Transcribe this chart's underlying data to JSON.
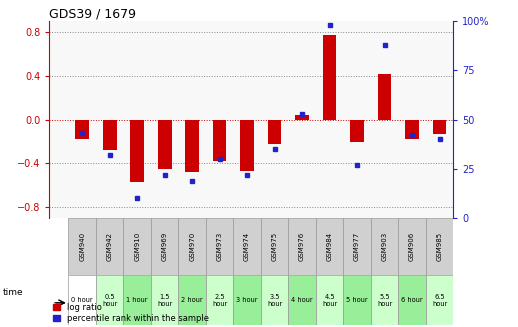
{
  "title": "GDS39 / 1679",
  "samples": [
    "GSM940",
    "GSM942",
    "GSM910",
    "GSM969",
    "GSM970",
    "GSM973",
    "GSM974",
    "GSM975",
    "GSM976",
    "GSM984",
    "GSM977",
    "GSM903",
    "GSM906",
    "GSM985"
  ],
  "time_labels": [
    "0 hour",
    "0.5\nhour",
    "1 hour",
    "1.5\nhour",
    "2 hour",
    "2.5\nhour",
    "3 hour",
    "3.5\nhour",
    "4 hour",
    "4.5\nhour",
    "5 hour",
    "5.5\nhour",
    "6 hour",
    "6.5\nhour"
  ],
  "log_ratio": [
    -0.18,
    -0.28,
    -0.57,
    -0.45,
    -0.48,
    -0.38,
    -0.47,
    -0.22,
    0.04,
    0.77,
    -0.2,
    0.42,
    -0.18,
    -0.13
  ],
  "percentile": [
    43,
    32,
    10,
    22,
    19,
    30,
    22,
    35,
    53,
    98,
    27,
    88,
    42,
    40
  ],
  "time_colors": [
    "#ffffff",
    "#ccffcc",
    "#99ee99",
    "#ccffcc",
    "#99ee99",
    "#ccffcc",
    "#99ee99",
    "#ccffcc",
    "#99ee99",
    "#ccffcc",
    "#99ee99",
    "#ccffcc",
    "#99ee99",
    "#ccffcc"
  ],
  "gsm_color": "#d0d0d0",
  "bar_color": "#cc0000",
  "dot_color": "#2222cc",
  "ylim_left": [
    -0.9,
    0.9
  ],
  "ylim_right": [
    0,
    100
  ],
  "yticks_left": [
    -0.8,
    -0.4,
    0.0,
    0.4,
    0.8
  ],
  "yticks_right": [
    0,
    25,
    50,
    75,
    100
  ],
  "bg_color": "#f8f8f8",
  "legend_red": "log ratio",
  "legend_blue": "percentile rank within the sample"
}
